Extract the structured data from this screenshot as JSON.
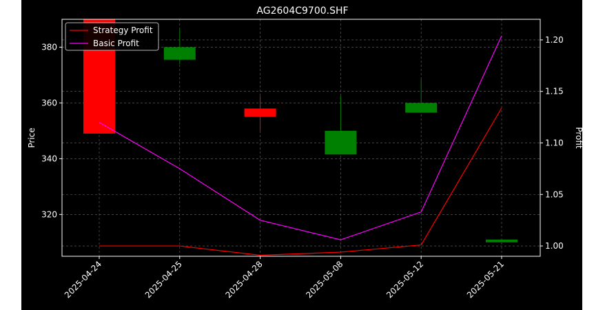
{
  "chart_data": {
    "type": "candlestick",
    "title": "AG2604C9700.SHF",
    "xlabel": "",
    "ylabel_left": "Price",
    "ylabel_right": "Profit",
    "categories": [
      "2025-04-24",
      "2025-04-25",
      "2025-04-28",
      "2025-05-08",
      "2025-05-12",
      "2025-05-21"
    ],
    "ylim_left": [
      305,
      390
    ],
    "yticks_left": [
      "320",
      "340",
      "360",
      "380"
    ],
    "ylim_right": [
      0.99,
      1.22
    ],
    "yticks_right": [
      "1.00",
      "1.05",
      "1.10",
      "1.15",
      "1.20"
    ],
    "candles": [
      {
        "date": "2025-04-24",
        "open": 393,
        "high": 393,
        "low": 349,
        "close": 349
      },
      {
        "date": "2025-04-25",
        "open": 375.5,
        "high": 386.5,
        "low": 374,
        "close": 380
      },
      {
        "date": "2025-04-28",
        "open": 358,
        "high": 362.5,
        "low": 350,
        "close": 355
      },
      {
        "date": "2025-05-08",
        "open": 341.5,
        "high": 362.5,
        "low": 341.5,
        "close": 350
      },
      {
        "date": "2025-05-12",
        "open": 356.5,
        "high": 368.5,
        "low": 356.5,
        "close": 360
      },
      {
        "date": "2025-05-21",
        "open": 310,
        "high": 311,
        "low": 310,
        "close": 311
      }
    ],
    "series": [
      {
        "name": "Strategy Profit",
        "axis": "right",
        "color": "#ff0000",
        "values": [
          1.0,
          1.0,
          0.991,
          0.994,
          1.001,
          1.134
        ]
      },
      {
        "name": "Basic Profit",
        "axis": "right",
        "color": "#ff00ff",
        "values": [
          1.12,
          1.075,
          1.025,
          1.006,
          1.033,
          1.204
        ]
      }
    ],
    "up_color": "#008000",
    "down_color": "#ff0000",
    "grid": true,
    "legend_position": "top-left",
    "background": "#000000"
  }
}
